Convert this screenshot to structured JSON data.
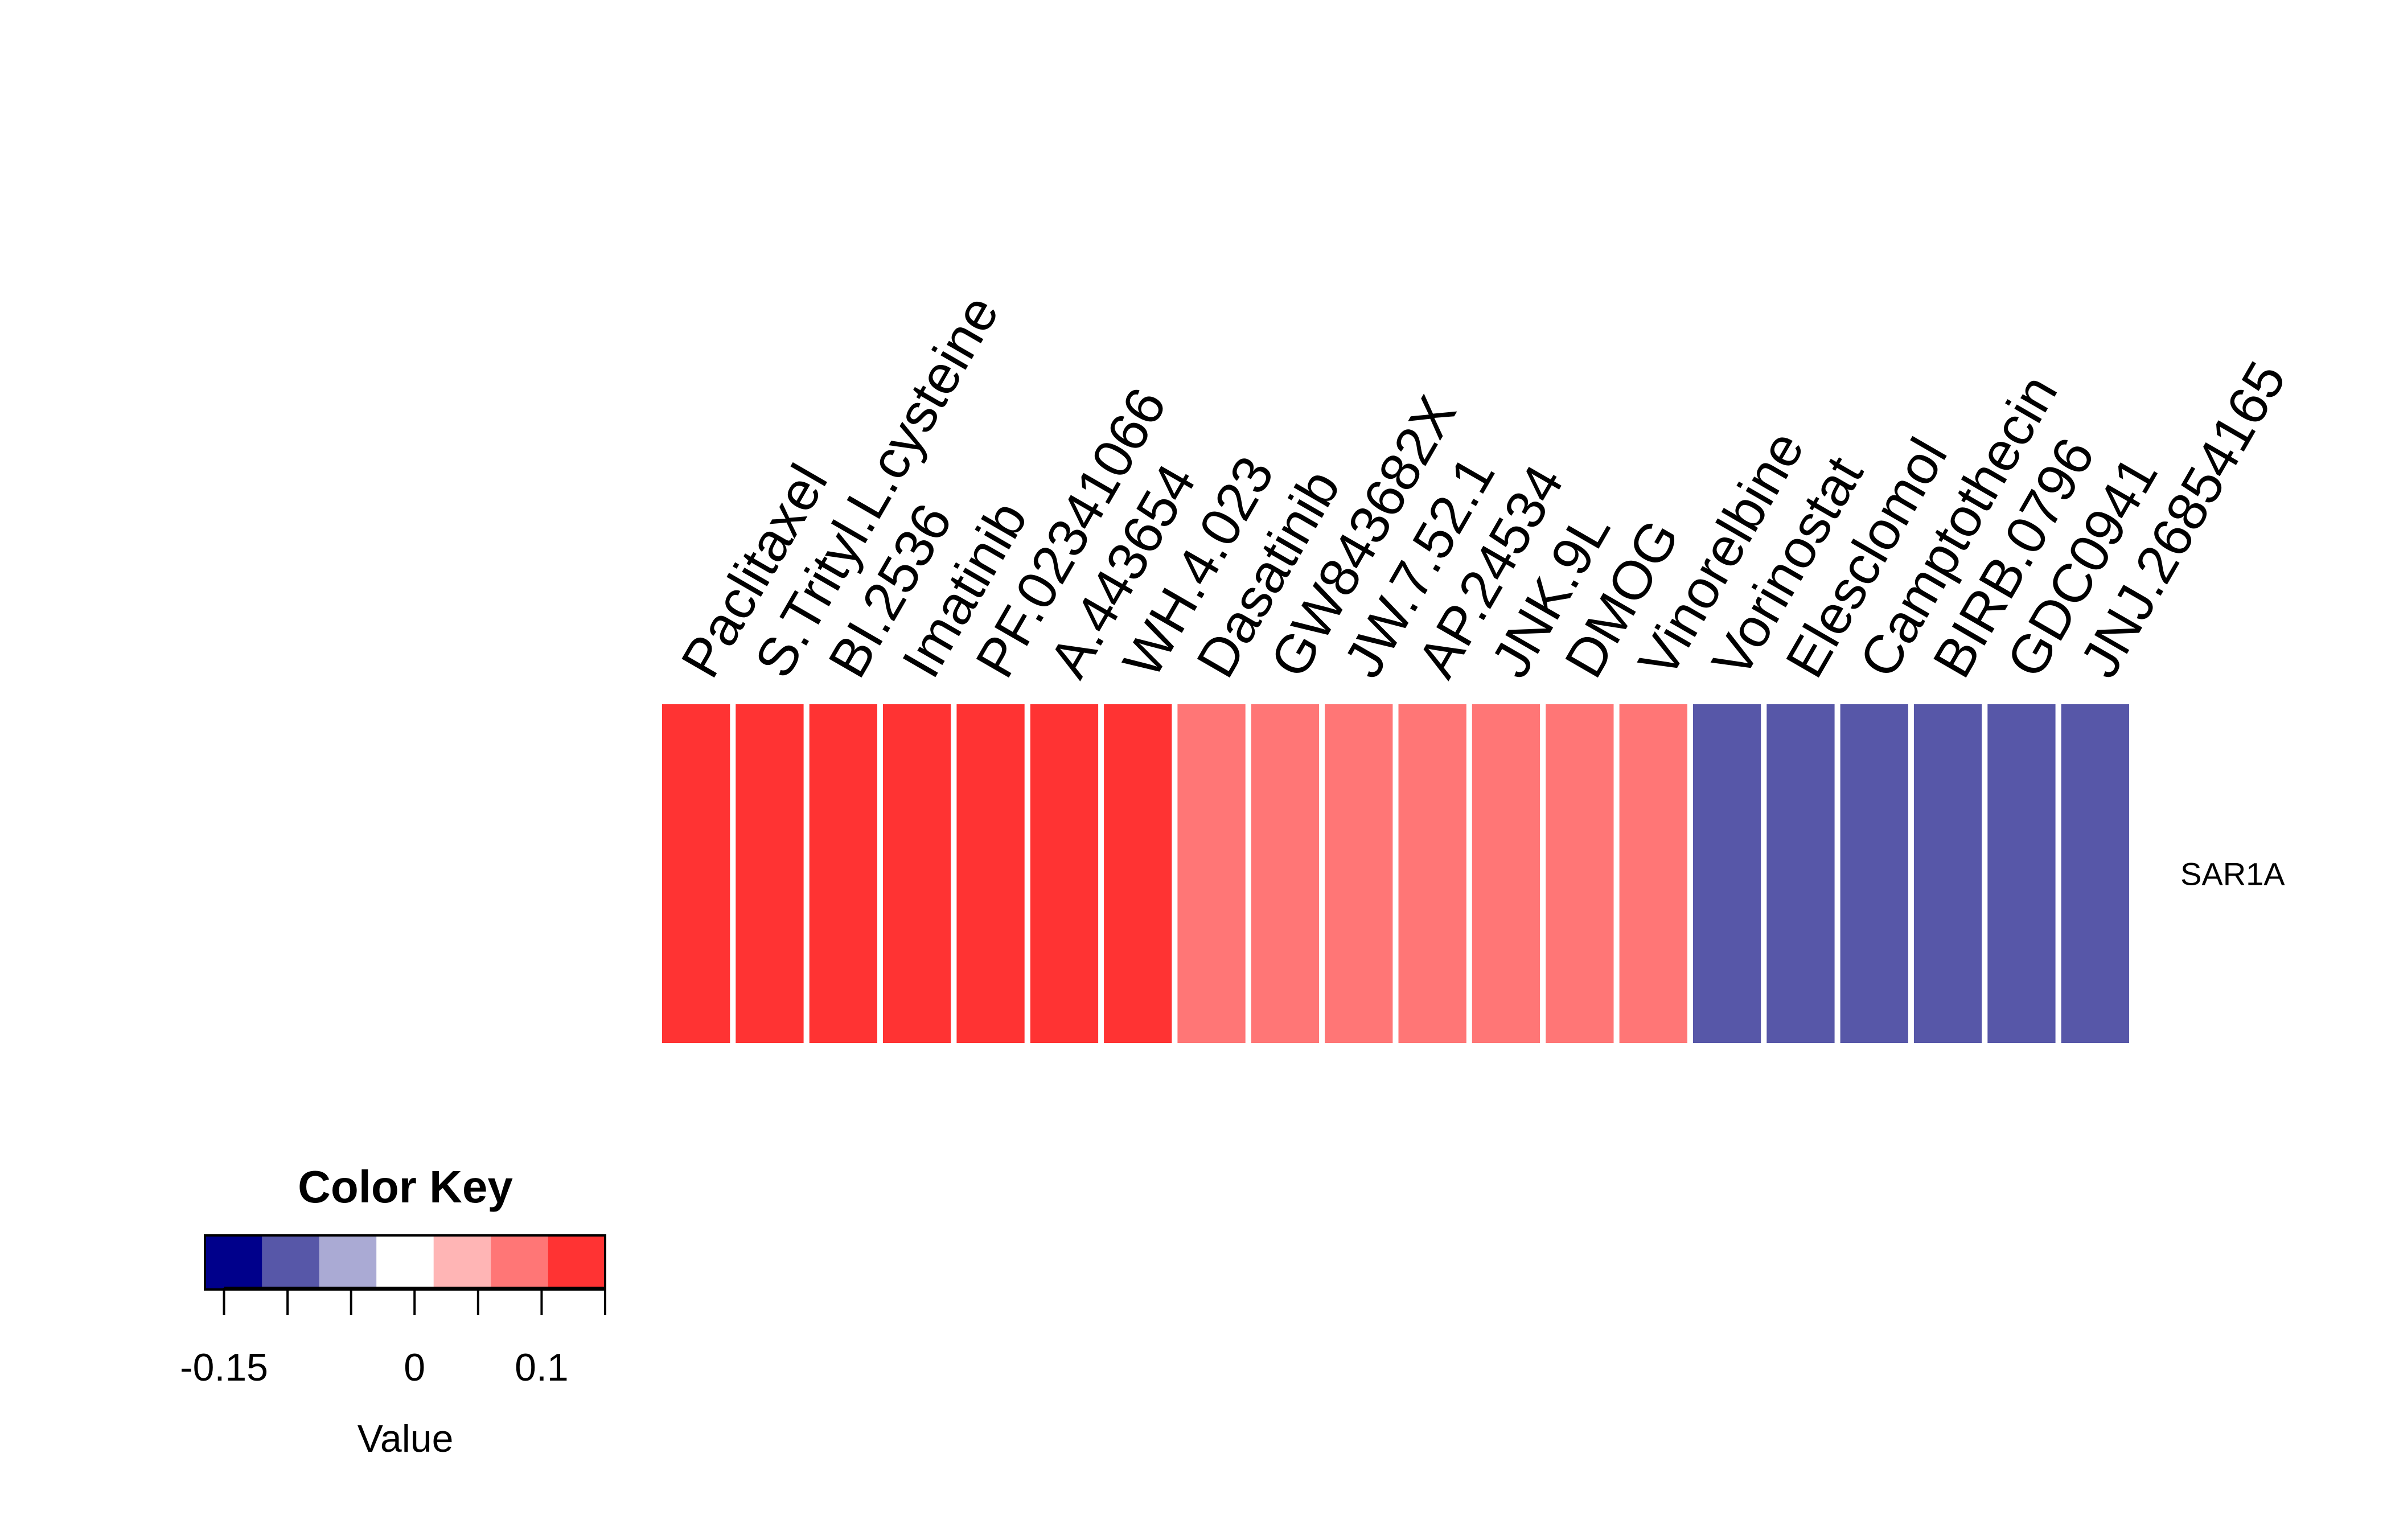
{
  "chart_data": {
    "type": "heatmap",
    "columns": [
      "Paclitaxel",
      "S.Trityl.L.cysteine",
      "BI.2536",
      "Imatinib",
      "PF.02341066",
      "A.443654",
      "WH.4.023",
      "Dasatinib",
      "GW843682X",
      "JW.7.52.1",
      "AP.24534",
      "JNK.9L",
      "DMOG",
      "Vinorelbine",
      "Vorinostat",
      "Elesclomol",
      "Camptothecin",
      "BIRB.0796",
      "GDC0941",
      "JNJ.26854165"
    ],
    "rows": [
      {
        "name": "SAR1A",
        "values": [
          0.125,
          0.125,
          0.125,
          0.125,
          0.125,
          0.125,
          0.125,
          0.075,
          0.075,
          0.075,
          0.075,
          0.075,
          0.075,
          0.075,
          -0.105,
          -0.105,
          -0.105,
          -0.105,
          -0.105,
          -0.105
        ]
      }
    ],
    "color_key": {
      "title": "Color Key",
      "xlabel": "Value",
      "breaks": [
        -0.165,
        -0.12,
        -0.075,
        -0.03,
        0.015,
        0.06,
        0.105,
        0.15
      ],
      "colors": [
        "#00008b",
        "#5757a8",
        "#aaaad4",
        "#ffffff",
        "#ffb5b5",
        "#ff7676",
        "#ff3333"
      ],
      "tick_values": [
        -0.15,
        -0.1,
        -0.05,
        0,
        0.05,
        0.1,
        0.15
      ],
      "tick_labels": [
        {
          "value": -0.15,
          "label": "-0.15"
        },
        {
          "value": 0,
          "label": "0"
        },
        {
          "value": 0.1,
          "label": "0.1"
        }
      ]
    }
  }
}
